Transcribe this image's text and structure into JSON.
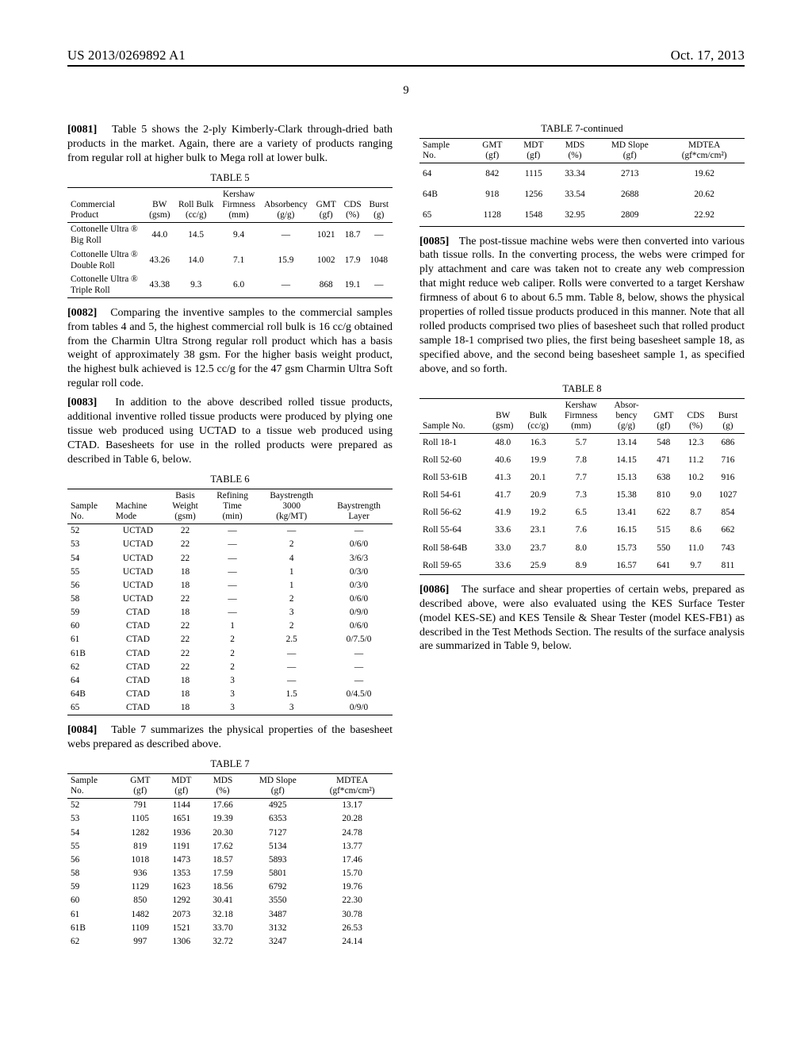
{
  "header": {
    "left": "US 2013/0269892 A1",
    "right": "Oct. 17, 2013"
  },
  "pageNumber": "9",
  "paras": {
    "p0081": {
      "num": "[0081]",
      "text": "Table 5 shows the 2-ply Kimberly-Clark through-dried bath products in the market. Again, there are a variety of products ranging from regular roll at higher bulk to Mega roll at lower bulk."
    },
    "p0082": {
      "num": "[0082]",
      "text": "Comparing the inventive samples to the commercial samples from tables 4 and 5, the highest commercial roll bulk is 16 cc/g obtained from the Charmin Ultra Strong regular roll product which has a basis weight of approximately 38 gsm. For the higher basis weight product, the highest bulk achieved is 12.5 cc/g for the 47 gsm Charmin Ultra Soft regular roll code."
    },
    "p0083": {
      "num": "[0083]",
      "text": "In addition to the above described rolled tissue products, additional inventive rolled tissue products were produced by plying one tissue web produced using UCTAD to a tissue web produced using CTAD. Basesheets for use in the rolled products were prepared as described in Table 6, below."
    },
    "p0084": {
      "num": "[0084]",
      "text": "Table 7 summarizes the physical properties of the basesheet webs prepared as described above."
    },
    "p0085": {
      "num": "[0085]",
      "text": "The post-tissue machine webs were then converted into various bath tissue rolls. In the converting process, the webs were crimped for ply attachment and care was taken not to create any web compression that might reduce web caliper. Rolls were converted to a target Kershaw firmness of about 6 to about 6.5 mm. Table 8, below, shows the physical properties of rolled tissue products produced in this manner. Note that all rolled products comprised two plies of basesheet such that rolled product sample 18-1 comprised two plies, the first being basesheet sample 18, as specified above, and the second being basesheet sample 1, as specified above, and so forth."
    },
    "p0086": {
      "num": "[0086]",
      "text": "The surface and shear properties of certain webs, prepared as described above, were also evaluated using the KES Surface Tester (model KES-SE) and KES Tensile & Shear Tester (model KES-FB1) as described in the Test Methods Section. The results of the surface analysis are summarized in Table 9, below."
    }
  },
  "table5": {
    "caption": "TABLE 5",
    "headers": [
      "Commercial Product",
      "BW (gsm)",
      "Roll Bulk (cc/g)",
      "Kershaw Firmness (mm)",
      "Absorbency (g/g)",
      "GMT (gf)",
      "CDS (%)",
      "Burst (g)"
    ],
    "rows": [
      [
        "Cottonelle Ultra ® Big Roll",
        "44.0",
        "14.5",
        "9.4",
        "—",
        "1021",
        "18.7",
        "—"
      ],
      [
        "Cottonelle Ultra ® Double Roll",
        "43.26",
        "14.0",
        "7.1",
        "15.9",
        "1002",
        "17.9",
        "1048"
      ],
      [
        "Cottonelle Ultra ® Triple Roll",
        "43.38",
        "9.3",
        "6.0",
        "—",
        "868",
        "19.1",
        "—"
      ]
    ]
  },
  "table6": {
    "caption": "TABLE 6",
    "headers": [
      "Sample No.",
      "Machine Mode",
      "Basis Weight (gsm)",
      "Refining Time (min)",
      "Baystrength 3000 (kg/MT)",
      "Baystrength Layer"
    ],
    "rows": [
      [
        "52",
        "UCTAD",
        "22",
        "—",
        "—",
        "—"
      ],
      [
        "53",
        "UCTAD",
        "22",
        "—",
        "2",
        "0/6/0"
      ],
      [
        "54",
        "UCTAD",
        "22",
        "—",
        "4",
        "3/6/3"
      ],
      [
        "55",
        "UCTAD",
        "18",
        "—",
        "1",
        "0/3/0"
      ],
      [
        "56",
        "UCTAD",
        "18",
        "—",
        "1",
        "0/3/0"
      ],
      [
        "58",
        "UCTAD",
        "22",
        "—",
        "2",
        "0/6/0"
      ],
      [
        "59",
        "CTAD",
        "18",
        "—",
        "3",
        "0/9/0"
      ],
      [
        "60",
        "CTAD",
        "22",
        "1",
        "2",
        "0/6/0"
      ],
      [
        "61",
        "CTAD",
        "22",
        "2",
        "2.5",
        "0/7.5/0"
      ],
      [
        "61B",
        "CTAD",
        "22",
        "2",
        "—",
        "—"
      ],
      [
        "62",
        "CTAD",
        "22",
        "2",
        "—",
        "—"
      ],
      [
        "64",
        "CTAD",
        "18",
        "3",
        "—",
        "—"
      ],
      [
        "64B",
        "CTAD",
        "18",
        "3",
        "1.5",
        "0/4.5/0"
      ],
      [
        "65",
        "CTAD",
        "18",
        "3",
        "3",
        "0/9/0"
      ]
    ]
  },
  "table7": {
    "caption": "TABLE 7",
    "headers": [
      "Sample No.",
      "GMT (gf)",
      "MDT (gf)",
      "MDS (%)",
      "MD Slope (gf)",
      "MDTEA (gf*cm/cm²)"
    ],
    "rows": [
      [
        "52",
        "791",
        "1144",
        "17.66",
        "4925",
        "13.17"
      ],
      [
        "53",
        "1105",
        "1651",
        "19.39",
        "6353",
        "20.28"
      ],
      [
        "54",
        "1282",
        "1936",
        "20.30",
        "7127",
        "24.78"
      ],
      [
        "55",
        "819",
        "1191",
        "17.62",
        "5134",
        "13.77"
      ],
      [
        "56",
        "1018",
        "1473",
        "18.57",
        "5893",
        "17.46"
      ],
      [
        "58",
        "936",
        "1353",
        "17.59",
        "5801",
        "15.70"
      ],
      [
        "59",
        "1129",
        "1623",
        "18.56",
        "6792",
        "19.76"
      ],
      [
        "60",
        "850",
        "1292",
        "30.41",
        "3550",
        "22.30"
      ],
      [
        "61",
        "1482",
        "2073",
        "32.18",
        "3487",
        "30.78"
      ],
      [
        "61B",
        "1109",
        "1521",
        "33.70",
        "3132",
        "26.53"
      ],
      [
        "62",
        "997",
        "1306",
        "32.72",
        "3247",
        "24.14"
      ]
    ]
  },
  "table7c": {
    "caption": "TABLE 7-continued",
    "headers": [
      "Sample No.",
      "GMT (gf)",
      "MDT (gf)",
      "MDS (%)",
      "MD Slope (gf)",
      "MDTEA (gf*cm/cm²)"
    ],
    "rows": [
      [
        "64",
        "842",
        "1115",
        "33.34",
        "2713",
        "19.62"
      ],
      [
        "64B",
        "918",
        "1256",
        "33.54",
        "2688",
        "20.62"
      ],
      [
        "65",
        "1128",
        "1548",
        "32.95",
        "2809",
        "22.92"
      ]
    ],
    "rowSpacing": "6px"
  },
  "table8": {
    "caption": "TABLE 8",
    "headers": [
      "Sample No.",
      "BW (gsm)",
      "Bulk (cc/g)",
      "Kershaw Firmness (mm)",
      "Absor-bency (g/g)",
      "GMT (gf)",
      "CDS (%)",
      "Burst (g)"
    ],
    "rows": [
      [
        "Roll 18-1",
        "48.0",
        "16.3",
        "5.7",
        "13.14",
        "548",
        "12.3",
        "686"
      ],
      [
        "Roll 52-60",
        "40.6",
        "19.9",
        "7.8",
        "14.15",
        "471",
        "11.2",
        "716"
      ],
      [
        "Roll 53-61B",
        "41.3",
        "20.1",
        "7.7",
        "15.13",
        "638",
        "10.2",
        "916"
      ],
      [
        "Roll 54-61",
        "41.7",
        "20.9",
        "7.3",
        "15.38",
        "810",
        "9.0",
        "1027"
      ],
      [
        "Roll 56-62",
        "41.9",
        "19.2",
        "6.5",
        "13.41",
        "622",
        "8.7",
        "854"
      ],
      [
        "Roll 55-64",
        "33.6",
        "23.1",
        "7.6",
        "16.15",
        "515",
        "8.6",
        "662"
      ],
      [
        "Roll 58-64B",
        "33.0",
        "23.7",
        "8.0",
        "15.73",
        "550",
        "11.0",
        "743"
      ],
      [
        "Roll 59-65",
        "33.6",
        "25.9",
        "8.9",
        "16.57",
        "641",
        "9.7",
        "811"
      ]
    ],
    "rowSpacing": "4px"
  }
}
